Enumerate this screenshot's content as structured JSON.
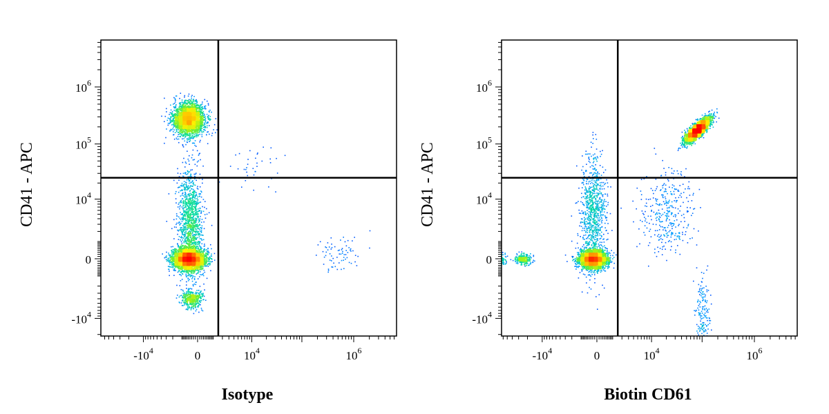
{
  "chart_data": [
    {
      "type": "scatter",
      "subtype": "flow-cytometry-density-dot-plot",
      "xlabel": "Isotype",
      "ylabel": "CD41 - APC",
      "x_scale": "biexponential",
      "y_scale": "biexponential",
      "x_ticks": [
        {
          "value": -10000,
          "base": "-10",
          "exp": "4"
        },
        {
          "value": 0,
          "base": "0",
          "exp": ""
        },
        {
          "value": 10000,
          "base": "10",
          "exp": "4"
        },
        {
          "value": 1000000,
          "base": "10",
          "exp": "6"
        }
      ],
      "y_ticks": [
        {
          "value": 1000000,
          "base": "10",
          "exp": "6"
        },
        {
          "value": 100000,
          "base": "10",
          "exp": "5"
        },
        {
          "value": 10000,
          "base": "10",
          "exp": "4"
        },
        {
          "value": 0,
          "base": "0",
          "exp": ""
        },
        {
          "value": -10000,
          "base": "-10",
          "exp": "4"
        }
      ],
      "gate": {
        "x": 1500,
        "y": 25000
      },
      "populations": [
        {
          "x": -500,
          "y": 280000,
          "spread_x": 0.6,
          "spread_y": 0.55,
          "weight": 0.32
        },
        {
          "x": -500,
          "y": 0,
          "spread_x": 0.6,
          "spread_y": 0.35,
          "weight": 0.42
        },
        {
          "x": -300,
          "y": -4000,
          "spread_x": 0.4,
          "spread_y": 0.3,
          "weight": 0.05
        },
        {
          "x": -400,
          "y": 3000,
          "spread_x": 0.5,
          "spread_y": 2.0,
          "weight": 0.15
        },
        {
          "x": -400,
          "y": -60000,
          "spread_x": 0.5,
          "spread_y": 0.3,
          "weight": 0.03
        },
        {
          "x": 500000,
          "y": 300,
          "spread_x": 0.9,
          "spread_y": 0.6,
          "weight": 0.008
        },
        {
          "x": 10000,
          "y": 40000,
          "spread_x": 1.2,
          "spread_y": 0.8,
          "weight": 0.004
        }
      ]
    },
    {
      "type": "scatter",
      "subtype": "flow-cytometry-density-dot-plot",
      "xlabel": "Biotin CD61",
      "ylabel": "CD41 - APC",
      "x_scale": "biexponential",
      "y_scale": "biexponential",
      "x_ticks": [
        {
          "value": -10000,
          "base": "-10",
          "exp": "4"
        },
        {
          "value": 0,
          "base": "0",
          "exp": ""
        },
        {
          "value": 10000,
          "base": "10",
          "exp": "4"
        },
        {
          "value": 1000000,
          "base": "10",
          "exp": "6"
        }
      ],
      "y_ticks": [
        {
          "value": 1000000,
          "base": "10",
          "exp": "6"
        },
        {
          "value": 100000,
          "base": "10",
          "exp": "5"
        },
        {
          "value": 10000,
          "base": "10",
          "exp": "4"
        },
        {
          "value": 0,
          "base": "0",
          "exp": ""
        },
        {
          "value": -10000,
          "base": "-10",
          "exp": "4"
        }
      ],
      "gate": {
        "x": 1500,
        "y": 25000
      },
      "populations": [
        {
          "x": 80000,
          "y": 180000,
          "spread_x": 0.45,
          "spread_y": 0.4,
          "correlation": 0.8,
          "weight": 0.4
        },
        {
          "x": -200,
          "y": 0,
          "spread_x": 0.5,
          "spread_y": 0.3,
          "weight": 0.38
        },
        {
          "x": -80000,
          "y": 0,
          "spread_x": 0.3,
          "spread_y": 0.2,
          "weight": 0.03
        },
        {
          "x": -25000,
          "y": 0,
          "spread_x": 0.3,
          "spread_y": 0.2,
          "weight": 0.03
        },
        {
          "x": -200,
          "y": 5000,
          "spread_x": 0.5,
          "spread_y": 2.0,
          "weight": 0.1
        },
        {
          "x": 20000,
          "y": 5000,
          "spread_x": 1.0,
          "spread_y": 1.5,
          "weight": 0.04
        },
        {
          "x": 100000,
          "y": -10000,
          "spread_x": 0.3,
          "spread_y": 1.5,
          "weight": 0.02
        }
      ]
    }
  ]
}
